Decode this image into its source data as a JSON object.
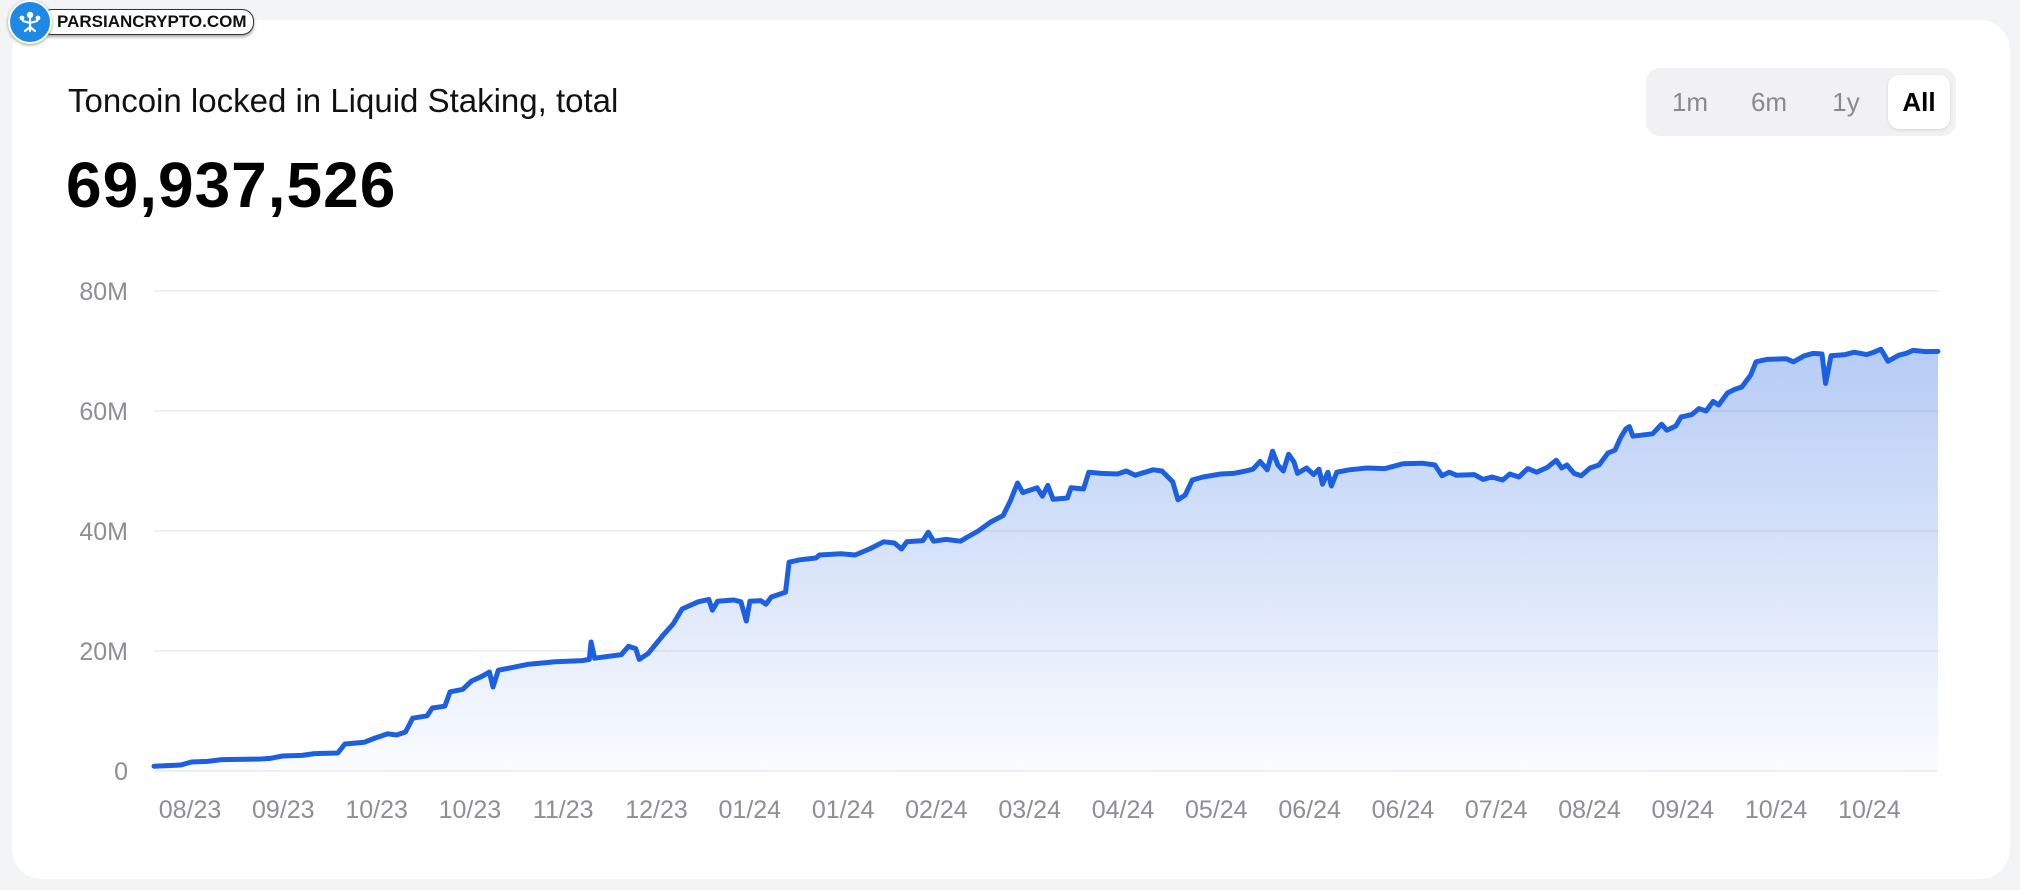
{
  "watermark": {
    "text": "PARSIANCRYPTO.COM",
    "icon": "people-logo-icon",
    "color": "#1e88e5"
  },
  "header": {
    "title": "Toncoin locked in Liquid Staking, total",
    "value": "69,937,526"
  },
  "range_selector": {
    "options": [
      "1m",
      "6m",
      "1y",
      "All"
    ],
    "selected": "All"
  },
  "colors": {
    "line": "#1c5fe0",
    "fill_top": "#1c5fe0",
    "grid": "#ececee",
    "axis_text": "#8e8e93"
  },
  "chart_data": {
    "type": "area",
    "title": "Toncoin locked in Liquid Staking, total",
    "xlabel": "",
    "ylabel": "",
    "ylim": [
      0,
      80000000
    ],
    "yticks": [
      0,
      20000000,
      40000000,
      60000000,
      80000000
    ],
    "ytick_labels": [
      "0",
      "20M",
      "40M",
      "60M",
      "80M"
    ],
    "xtick_labels": [
      "08/23",
      "09/23",
      "10/23",
      "10/23",
      "11/23",
      "12/23",
      "01/24",
      "01/24",
      "02/24",
      "03/24",
      "04/24",
      "05/24",
      "06/24",
      "06/24",
      "07/24",
      "08/24",
      "09/24",
      "10/24",
      "10/24"
    ],
    "grid": true,
    "legend": "none",
    "series": [
      {
        "values": [
          [
            0.0,
            0.8
          ],
          [
            0.015,
            1.0
          ],
          [
            0.021,
            1.5
          ],
          [
            0.03,
            1.6
          ],
          [
            0.038,
            1.9
          ],
          [
            0.06,
            2.0
          ],
          [
            0.065,
            2.1
          ],
          [
            0.072,
            2.5
          ],
          [
            0.083,
            2.6
          ],
          [
            0.09,
            2.9
          ],
          [
            0.103,
            3.0
          ],
          [
            0.107,
            4.5
          ],
          [
            0.118,
            4.8
          ],
          [
            0.124,
            5.5
          ],
          [
            0.131,
            6.2
          ],
          [
            0.136,
            6.0
          ],
          [
            0.141,
            6.5
          ],
          [
            0.145,
            8.8
          ],
          [
            0.153,
            9.2
          ],
          [
            0.156,
            10.5
          ],
          [
            0.163,
            10.8
          ],
          [
            0.166,
            13.2
          ],
          [
            0.173,
            13.6
          ],
          [
            0.178,
            15.0
          ],
          [
            0.184,
            15.8
          ],
          [
            0.188,
            16.5
          ],
          [
            0.19,
            14.0
          ],
          [
            0.193,
            16.8
          ],
          [
            0.2,
            17.2
          ],
          [
            0.21,
            17.8
          ],
          [
            0.225,
            18.2
          ],
          [
            0.24,
            18.4
          ],
          [
            0.244,
            18.6
          ],
          [
            0.245,
            21.5
          ],
          [
            0.247,
            18.8
          ],
          [
            0.262,
            19.4
          ],
          [
            0.266,
            20.8
          ],
          [
            0.27,
            20.4
          ],
          [
            0.272,
            18.6
          ],
          [
            0.277,
            19.6
          ],
          [
            0.285,
            22.5
          ],
          [
            0.291,
            24.5
          ],
          [
            0.296,
            27.0
          ],
          [
            0.305,
            28.2
          ],
          [
            0.311,
            28.6
          ],
          [
            0.313,
            26.8
          ],
          [
            0.316,
            28.3
          ],
          [
            0.325,
            28.5
          ],
          [
            0.329,
            28.2
          ],
          [
            0.332,
            25.0
          ],
          [
            0.334,
            28.3
          ],
          [
            0.34,
            28.4
          ],
          [
            0.343,
            27.8
          ],
          [
            0.346,
            29.0
          ],
          [
            0.351,
            29.5
          ],
          [
            0.354,
            29.8
          ],
          [
            0.356,
            34.8
          ],
          [
            0.362,
            35.2
          ],
          [
            0.371,
            35.5
          ],
          [
            0.373,
            36.0
          ],
          [
            0.385,
            36.2
          ],
          [
            0.393,
            36.0
          ],
          [
            0.401,
            37.0
          ],
          [
            0.409,
            38.2
          ],
          [
            0.415,
            38.0
          ],
          [
            0.419,
            37.0
          ],
          [
            0.422,
            38.2
          ],
          [
            0.431,
            38.4
          ],
          [
            0.434,
            39.8
          ],
          [
            0.437,
            38.3
          ],
          [
            0.444,
            38.6
          ],
          [
            0.452,
            38.3
          ],
          [
            0.456,
            39.0
          ],
          [
            0.462,
            40.0
          ],
          [
            0.469,
            41.5
          ],
          [
            0.476,
            42.6
          ],
          [
            0.48,
            45.0
          ],
          [
            0.484,
            48.0
          ],
          [
            0.487,
            46.4
          ],
          [
            0.495,
            47.2
          ],
          [
            0.498,
            45.8
          ],
          [
            0.501,
            47.6
          ],
          [
            0.504,
            45.3
          ],
          [
            0.512,
            45.5
          ],
          [
            0.514,
            47.2
          ],
          [
            0.521,
            47.0
          ],
          [
            0.524,
            49.8
          ],
          [
            0.531,
            49.6
          ],
          [
            0.54,
            49.5
          ],
          [
            0.545,
            50.0
          ],
          [
            0.55,
            49.3
          ],
          [
            0.56,
            50.2
          ],
          [
            0.565,
            50.0
          ],
          [
            0.571,
            48.2
          ],
          [
            0.574,
            45.2
          ],
          [
            0.578,
            46.0
          ],
          [
            0.582,
            48.5
          ],
          [
            0.588,
            49.0
          ],
          [
            0.598,
            49.5
          ],
          [
            0.605,
            49.6
          ],
          [
            0.612,
            50.0
          ],
          [
            0.616,
            50.3
          ],
          [
            0.62,
            51.6
          ],
          [
            0.624,
            50.2
          ],
          [
            0.627,
            53.3
          ],
          [
            0.63,
            51.0
          ],
          [
            0.633,
            50.0
          ],
          [
            0.636,
            52.8
          ],
          [
            0.639,
            51.5
          ],
          [
            0.641,
            49.6
          ],
          [
            0.646,
            50.5
          ],
          [
            0.65,
            49.4
          ],
          [
            0.653,
            50.3
          ],
          [
            0.655,
            47.8
          ],
          [
            0.658,
            49.8
          ],
          [
            0.66,
            47.5
          ],
          [
            0.663,
            49.8
          ],
          [
            0.67,
            50.2
          ],
          [
            0.68,
            50.5
          ],
          [
            0.69,
            50.4
          ],
          [
            0.7,
            51.2
          ],
          [
            0.711,
            51.3
          ],
          [
            0.718,
            51.0
          ],
          [
            0.722,
            49.2
          ],
          [
            0.726,
            49.8
          ],
          [
            0.73,
            49.3
          ],
          [
            0.74,
            49.4
          ],
          [
            0.745,
            48.6
          ],
          [
            0.75,
            49.0
          ],
          [
            0.756,
            48.5
          ],
          [
            0.76,
            49.5
          ],
          [
            0.765,
            49.0
          ],
          [
            0.77,
            50.4
          ],
          [
            0.775,
            49.8
          ],
          [
            0.781,
            50.6
          ],
          [
            0.786,
            51.8
          ],
          [
            0.789,
            50.5
          ],
          [
            0.792,
            51.0
          ],
          [
            0.796,
            49.6
          ],
          [
            0.8,
            49.2
          ],
          [
            0.805,
            50.5
          ],
          [
            0.81,
            51.0
          ],
          [
            0.815,
            53.0
          ],
          [
            0.819,
            53.5
          ],
          [
            0.822,
            55.5
          ],
          [
            0.825,
            57.0
          ],
          [
            0.827,
            57.4
          ],
          [
            0.829,
            55.8
          ],
          [
            0.84,
            56.2
          ],
          [
            0.845,
            57.8
          ],
          [
            0.848,
            56.8
          ],
          [
            0.853,
            57.5
          ],
          [
            0.856,
            59.0
          ],
          [
            0.862,
            59.4
          ],
          [
            0.866,
            60.4
          ],
          [
            0.87,
            60.0
          ],
          [
            0.874,
            61.6
          ],
          [
            0.877,
            61.0
          ],
          [
            0.882,
            63.0
          ],
          [
            0.886,
            63.6
          ],
          [
            0.89,
            64.0
          ],
          [
            0.895,
            66.0
          ],
          [
            0.898,
            68.2
          ],
          [
            0.904,
            68.6
          ],
          [
            0.915,
            68.7
          ],
          [
            0.919,
            68.2
          ],
          [
            0.925,
            69.2
          ],
          [
            0.93,
            69.6
          ],
          [
            0.935,
            69.5
          ],
          [
            0.937,
            64.6
          ],
          [
            0.94,
            69.2
          ],
          [
            0.948,
            69.4
          ],
          [
            0.953,
            69.8
          ],
          [
            0.96,
            69.4
          ],
          [
            0.964,
            69.8
          ],
          [
            0.968,
            70.3
          ],
          [
            0.972,
            68.3
          ],
          [
            0.978,
            69.3
          ],
          [
            0.982,
            69.6
          ],
          [
            0.986,
            70.1
          ],
          [
            0.993,
            69.9
          ],
          [
            1.0,
            69.94
          ]
        ]
      }
    ],
    "x_encoding": "fraction of displayed date range",
    "value_unit": "M"
  }
}
